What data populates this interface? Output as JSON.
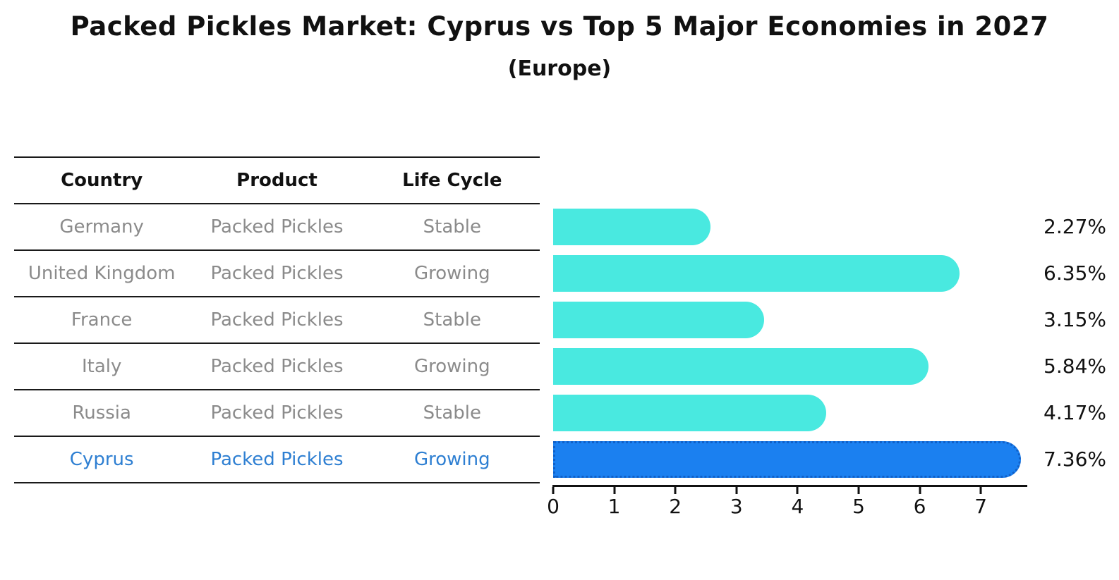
{
  "title": "Packed Pickles Market: Cyprus vs Top 5 Major Economies in 2027",
  "subtitle": "(Europe)",
  "table": {
    "headers": {
      "country": "Country",
      "product": "Product",
      "life_cycle": "Life Cycle"
    },
    "rows": [
      {
        "country": "Germany",
        "product": "Packed Pickles",
        "life_cycle": "Stable"
      },
      {
        "country": "United Kingdom",
        "product": "Packed Pickles",
        "life_cycle": "Growing"
      },
      {
        "country": "France",
        "product": "Packed Pickles",
        "life_cycle": "Stable"
      },
      {
        "country": "Italy",
        "product": "Packed Pickles",
        "life_cycle": "Growing"
      },
      {
        "country": "Russia",
        "product": "Packed Pickles",
        "life_cycle": "Stable"
      },
      {
        "country": "Cyprus",
        "product": "Packed Pickles",
        "life_cycle": "Growing"
      }
    ]
  },
  "chart_data": {
    "type": "bar",
    "orientation": "horizontal",
    "title": "Packed Pickles Market: Cyprus vs Top 5 Major Economies in 2027",
    "subtitle": "(Europe)",
    "categories": [
      "Germany",
      "United Kingdom",
      "France",
      "Italy",
      "Russia",
      "Cyprus"
    ],
    "values": [
      2.27,
      6.35,
      3.15,
      5.84,
      4.17,
      7.36
    ],
    "value_labels": [
      "2.27%",
      "6.35%",
      "3.15%",
      "5.84%",
      "4.17%",
      "7.36%"
    ],
    "x_ticks": [
      "0",
      "1",
      "2",
      "3",
      "4",
      "5",
      "6",
      "7"
    ],
    "xlim": [
      0,
      7.76
    ],
    "xlabel": "",
    "ylabel": "",
    "grid": false,
    "legend": false,
    "highlight_category": "Cyprus",
    "highlight_index": 5,
    "colors": {
      "bar": "#49E9E0",
      "highlight_bar": "#1B80F0",
      "highlight_border": "#1060C8",
      "text": "#111111",
      "muted_text": "#8B8B8B",
      "highlight_text": "#2E7FD2"
    }
  }
}
